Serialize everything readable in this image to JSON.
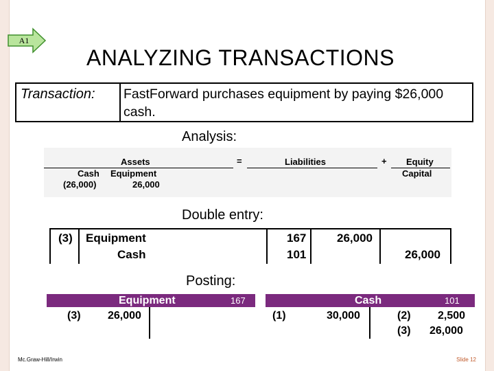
{
  "badge": {
    "label": "A1",
    "fill": "#b9e59d",
    "stroke": "#3f8f2c"
  },
  "title": "ANALYZING TRANSACTIONS",
  "transaction": {
    "label": "Transaction:",
    "description": "FastForward purchases equipment by paying $26,000 cash."
  },
  "analysis": {
    "label": "Analysis:",
    "assets": "Assets",
    "equals": "=",
    "liabilities": "Liabilities",
    "plus": "+",
    "equity": "Equity",
    "cash_col": "Cash",
    "equipment_col": "Equipment",
    "capital_col": "Capital",
    "cash_value": "(26,000)",
    "equipment_value": "26,000"
  },
  "double_entry": {
    "label": "Double entry:",
    "entry_number": "(3)",
    "debit_account": "Equipment",
    "credit_account": "Cash",
    "debit_ref": "167",
    "credit_ref": "101",
    "debit_amount": "26,000",
    "credit_amount": "26,000"
  },
  "posting": {
    "label": "Posting:",
    "header_color": "#7b2a7e",
    "equipment_account": {
      "name": "Equipment",
      "number": "167",
      "debits": [
        {
          "ref": "(3)",
          "amount": "26,000"
        }
      ]
    },
    "cash_account": {
      "name": "Cash",
      "number": "101",
      "debits": [
        {
          "ref": "(1)",
          "amount": "30,000"
        }
      ],
      "credits": [
        {
          "ref": "(2)",
          "amount": "2,500"
        },
        {
          "ref": "(3)",
          "amount": "26,000"
        }
      ]
    }
  },
  "footer": {
    "left": "Mc.Graw-Hill/Irwin",
    "right": "Slide 12"
  }
}
